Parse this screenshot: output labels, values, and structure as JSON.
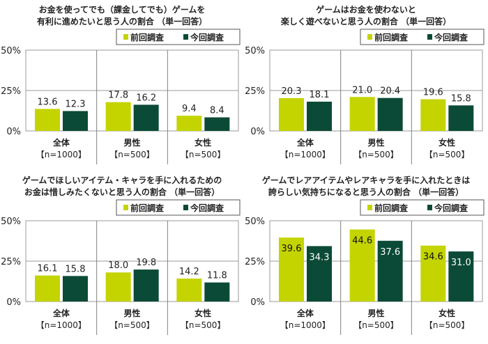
{
  "colors": {
    "previous": "#c3d400",
    "current": "#0b4a36",
    "grid": "#999999",
    "axis": "#808080"
  },
  "chart_data": [
    {
      "type": "bar",
      "title": [
        "お金を使ってでも（課金してでも）ゲームを",
        "有利に進めたいと思う人の割合 （単一回答）"
      ],
      "categories": [
        [
          "全体",
          "【n=1000】"
        ],
        [
          "男性",
          "【n=500】"
        ],
        [
          "女性",
          "【n=500】"
        ]
      ],
      "series": [
        {
          "name": "前回調査",
          "values": [
            13.6,
            17.8,
            9.4
          ]
        },
        {
          "name": "今回調査",
          "values": [
            12.3,
            16.2,
            8.4
          ]
        }
      ],
      "yticks": [
        "0%",
        "25%",
        "50%"
      ],
      "ylim": [
        0,
        50
      ],
      "grid": true,
      "legend": "top-right"
    },
    {
      "type": "bar",
      "title": [
        "ゲームはお金を使わないと",
        "楽しく遊べないと思う人の割合 （単一回答）"
      ],
      "categories": [
        [
          "全体",
          "【n=1000】"
        ],
        [
          "男性",
          "【n=500】"
        ],
        [
          "女性",
          "【n=500】"
        ]
      ],
      "series": [
        {
          "name": "前回調査",
          "values": [
            20.3,
            21.0,
            19.6
          ]
        },
        {
          "name": "今回調査",
          "values": [
            18.1,
            20.4,
            15.8
          ]
        }
      ],
      "yticks": [
        "0%",
        "25%",
        "50%"
      ],
      "ylim": [
        0,
        50
      ],
      "grid": true,
      "legend": "top-right"
    },
    {
      "type": "bar",
      "title": [
        "ゲームでほしいアイテム・キャラを手に入れるための",
        "お金は惜しみたくないと思う人の割合 （単一回答）"
      ],
      "categories": [
        [
          "全体",
          "【n=1000】"
        ],
        [
          "男性",
          "【n=500】"
        ],
        [
          "女性",
          "【n=500】"
        ]
      ],
      "series": [
        {
          "name": "前回調査",
          "values": [
            16.1,
            18.0,
            14.2
          ]
        },
        {
          "name": "今回調査",
          "values": [
            15.8,
            19.8,
            11.8
          ]
        }
      ],
      "yticks": [
        "0%",
        "25%",
        "50%"
      ],
      "ylim": [
        0,
        50
      ],
      "grid": true,
      "legend": "top-right"
    },
    {
      "type": "bar",
      "title": [
        "ゲームでレアアイテムやレアキャラを手に入れたときは",
        "誇らしい気持ちになると思う人の割合 （単一回答）"
      ],
      "categories": [
        [
          "全体",
          "【n=1000】"
        ],
        [
          "男性",
          "【n=500】"
        ],
        [
          "女性",
          "【n=500】"
        ]
      ],
      "series": [
        {
          "name": "前回調査",
          "values": [
            39.6,
            44.6,
            34.6
          ]
        },
        {
          "name": "今回調査",
          "values": [
            34.3,
            37.6,
            31.0
          ]
        }
      ],
      "yticks": [
        "0%",
        "25%",
        "50%"
      ],
      "ylim": [
        0,
        50
      ],
      "grid": true,
      "legend": "top-right"
    }
  ]
}
